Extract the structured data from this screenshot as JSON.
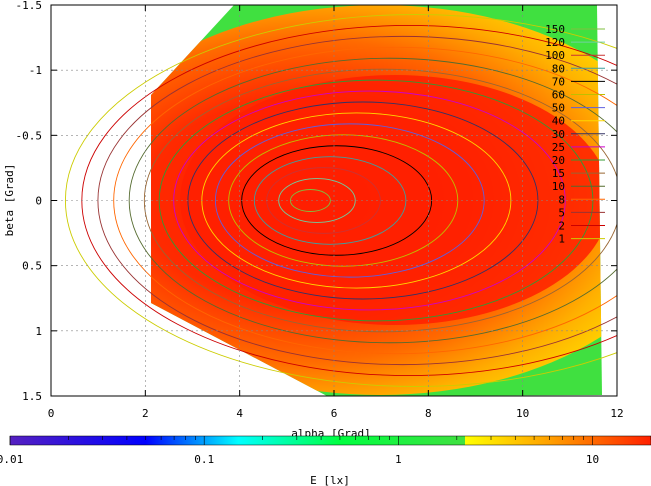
{
  "chart_data": {
    "type": "heatmap",
    "title": "",
    "xlabel": "alpha [Grad]",
    "ylabel": "beta [Grad]",
    "xlim": [
      0,
      12
    ],
    "ylim": [
      1.5,
      -1.5
    ],
    "x_ticks": [
      0,
      2,
      4,
      6,
      8,
      10,
      12
    ],
    "y_ticks": [
      -1.5,
      -1,
      -0.5,
      0,
      0.5,
      1,
      1.5
    ],
    "x_tick_labels": [
      "0",
      "2",
      "4",
      "6",
      "8",
      "10",
      "12"
    ],
    "y_tick_labels": [
      "-1.5",
      "-1",
      "-0.5",
      "0",
      "0.5",
      "1",
      "1.5"
    ],
    "grid": true,
    "legend_position": "top-right",
    "contour_levels": [
      {
        "label": "150",
        "color": "#7fbf3f"
      },
      {
        "label": "120",
        "color": "#6fcf9f"
      },
      {
        "label": "100",
        "color": "#cc3333"
      },
      {
        "label": "80",
        "color": "#3f9f9f"
      },
      {
        "label": "70",
        "color": "#000000"
      },
      {
        "label": "60",
        "color": "#bfbf00"
      },
      {
        "label": "50",
        "color": "#5f5fdf"
      },
      {
        "label": "40",
        "color": "#ffd700"
      },
      {
        "label": "30",
        "color": "#333366"
      },
      {
        "label": "25",
        "color": "#cc00cc"
      },
      {
        "label": "20",
        "color": "#339933"
      },
      {
        "label": "15",
        "color": "#996633"
      },
      {
        "label": "10",
        "color": "#556b2f"
      },
      {
        "label": "8",
        "color": "#ff6600"
      },
      {
        "label": "5",
        "color": "#993333"
      },
      {
        "label": "2",
        "color": "#cc0000"
      },
      {
        "label": "1",
        "color": "#cccc00"
      }
    ],
    "colorbar": {
      "label": "E [lx]",
      "scale": "log",
      "range": [
        0.01,
        20
      ],
      "tick_labels": [
        "0.01",
        "0.1",
        "1",
        "10"
      ],
      "tick_values": [
        0.01,
        0.1,
        1,
        10
      ],
      "colors": [
        {
          "value": 0.01,
          "color": "#5520c0"
        },
        {
          "value": 0.05,
          "color": "#0000ff"
        },
        {
          "value": 0.15,
          "color": "#00ffff"
        },
        {
          "value": 0.5,
          "color": "#00ff40"
        },
        {
          "value": 2.2,
          "color": "#40e040"
        },
        {
          "value": 2.21,
          "color": "#ffff00"
        },
        {
          "value": 6,
          "color": "#ffa000"
        },
        {
          "value": 20,
          "color": "#ff2000"
        }
      ]
    },
    "peak": {
      "alpha": 5.5,
      "beta": 0,
      "value": 150
    }
  }
}
